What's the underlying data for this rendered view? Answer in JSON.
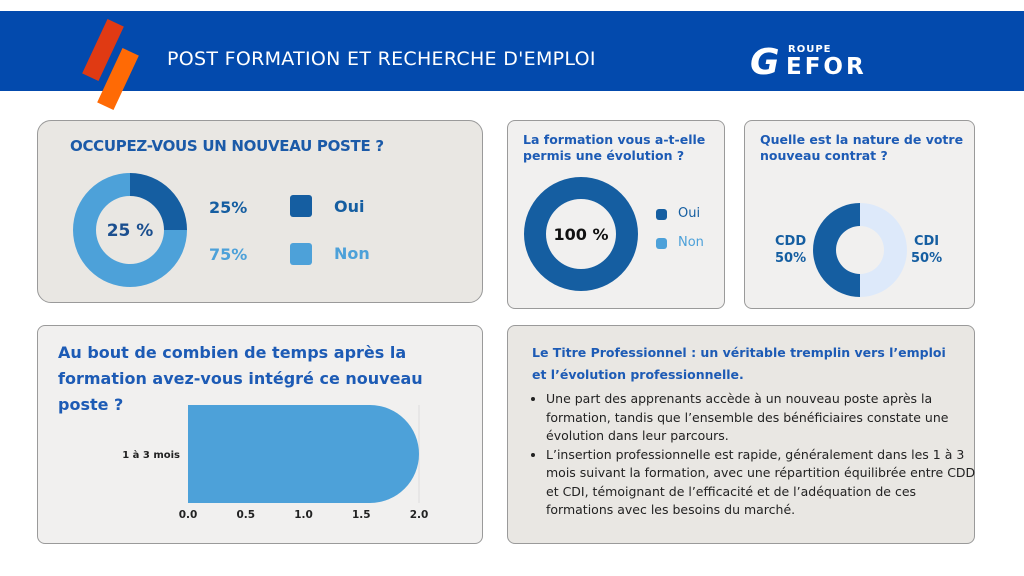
{
  "header": {
    "title": "POST FORMATION ET RECHERCHE D'EMPLOI",
    "logo": {
      "small": "ROUPE",
      "big_initial": "G",
      "big_rest": "EFOR"
    },
    "colors": {
      "banner": "#034aad",
      "stripe_red": "#e03a13",
      "stripe_orange": "#ff6a05"
    }
  },
  "colors": {
    "dark_blue": "#155ea1",
    "light_blue": "#4da1d9",
    "pale_blue": "#dde9fa",
    "title_blue": "#1d5bb5"
  },
  "chart_data": [
    {
      "type": "pie",
      "title": "OCCUPEZ-VOUS UN NOUVEAU POSTE ?",
      "center_label": "25 %",
      "categories": [
        "Oui",
        "Non"
      ],
      "values": [
        25,
        75
      ],
      "value_labels": [
        "25%",
        "75%"
      ],
      "legend": "right"
    },
    {
      "type": "pie",
      "title": "La formation vous a-t-elle permis une évolution ?",
      "center_label": "100 %",
      "categories": [
        "Oui",
        "Non"
      ],
      "values": [
        100,
        0
      ],
      "legend": "right"
    },
    {
      "type": "pie",
      "title": "Quelle est la nature de votre nouveau contrat ?",
      "categories": [
        "CDD",
        "CDI"
      ],
      "values": [
        50,
        50
      ],
      "value_labels": [
        "50%",
        "50%"
      ],
      "legend": "none"
    },
    {
      "type": "bar",
      "orientation": "horizontal",
      "title": "Au bout de combien de temps après la formation avez-vous intégré ce nouveau poste ?",
      "categories": [
        "1 à 3 mois"
      ],
      "values": [
        2
      ],
      "xlim": [
        0,
        2
      ],
      "xticks": [
        "0.0",
        "0.5",
        "1.0",
        "1.5",
        "2.0"
      ],
      "xlabel": "",
      "ylabel": ""
    }
  ],
  "summary": {
    "title": "Le Titre Professionnel : un véritable tremplin vers l’emploi et l’évolution professionnelle.",
    "bullets": [
      "Une part des apprenants accède à un nouveau poste après la formation, tandis que l’ensemble des bénéficiaires constate une évolution dans leur parcours.",
      " L’insertion professionnelle est rapide, généralement dans les 1 à 3 mois suivant la formation, avec une répartition équilibrée entre CDD et CDI, témoignant de l’efficacité et de l’adéquation de ces formations avec les besoins du marché."
    ]
  }
}
